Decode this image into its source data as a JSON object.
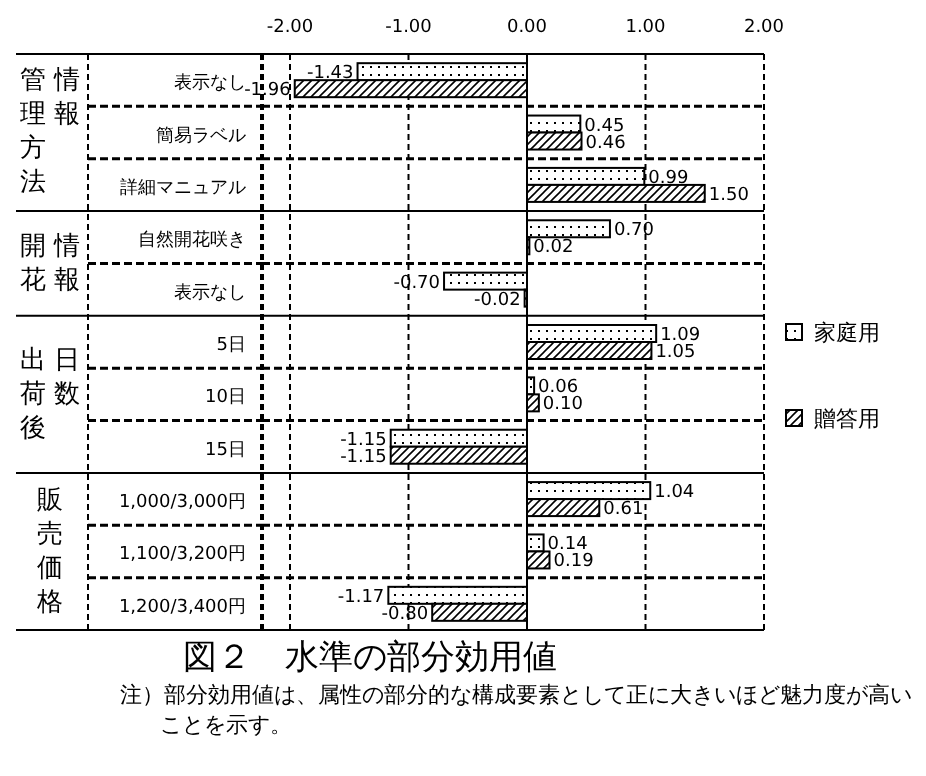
{
  "chart_data": {
    "type": "bar",
    "orientation": "horizontal",
    "title": "図２　水準の部分効用値",
    "categories": [
      "表示なし",
      "簡易ラベル",
      "詳細マニュアル",
      "自然開花咲き",
      "表示なし",
      "5日",
      "10日",
      "15日",
      "1,000/3,000円",
      "1,100/3,200円",
      "1,200/3,400円"
    ],
    "series": [
      {
        "name": "家庭用",
        "color": "#000000",
        "values": [
          -1.43,
          0.45,
          0.99,
          0.7,
          -0.7,
          1.09,
          0.06,
          -1.15,
          1.04,
          0.14,
          -1.17
        ],
        "value_labels": [
          "-1.43",
          "0.45",
          "0.99",
          "0.70",
          "-0.70",
          "1.09",
          "0.06",
          "-1.15",
          "1.04",
          "0.14",
          "-1.17"
        ]
      },
      {
        "name": "贈答用",
        "color": "#000000",
        "values": [
          -1.96,
          0.46,
          1.5,
          0.02,
          -0.02,
          1.05,
          0.1,
          -1.15,
          0.61,
          0.19,
          -0.8
        ],
        "value_labels": [
          "-1.96",
          "0.46",
          "1.50",
          "0.02",
          "-0.02",
          "1.05",
          "0.10",
          "-1.15",
          "0.61",
          "0.19",
          "-0.80"
        ]
      }
    ],
    "xlim": [
      -2,
      2
    ],
    "xticks": [
      {
        "value": -2,
        "label": "-2.00"
      },
      {
        "value": -1,
        "label": "-1.00"
      },
      {
        "value": 0,
        "label": "0.00"
      },
      {
        "value": 1,
        "label": "1.00"
      },
      {
        "value": 2,
        "label": "2.00"
      }
    ],
    "grid": "x",
    "legend": "right",
    "annotations": [
      "管理方法",
      "情報",
      "開花",
      "情報",
      "出荷後",
      "日数",
      "販売価格",
      "注）部分効用値は、属性の部分的な構成要素として正に大きいほど魅力度が高いことを示す。"
    ]
  }
}
